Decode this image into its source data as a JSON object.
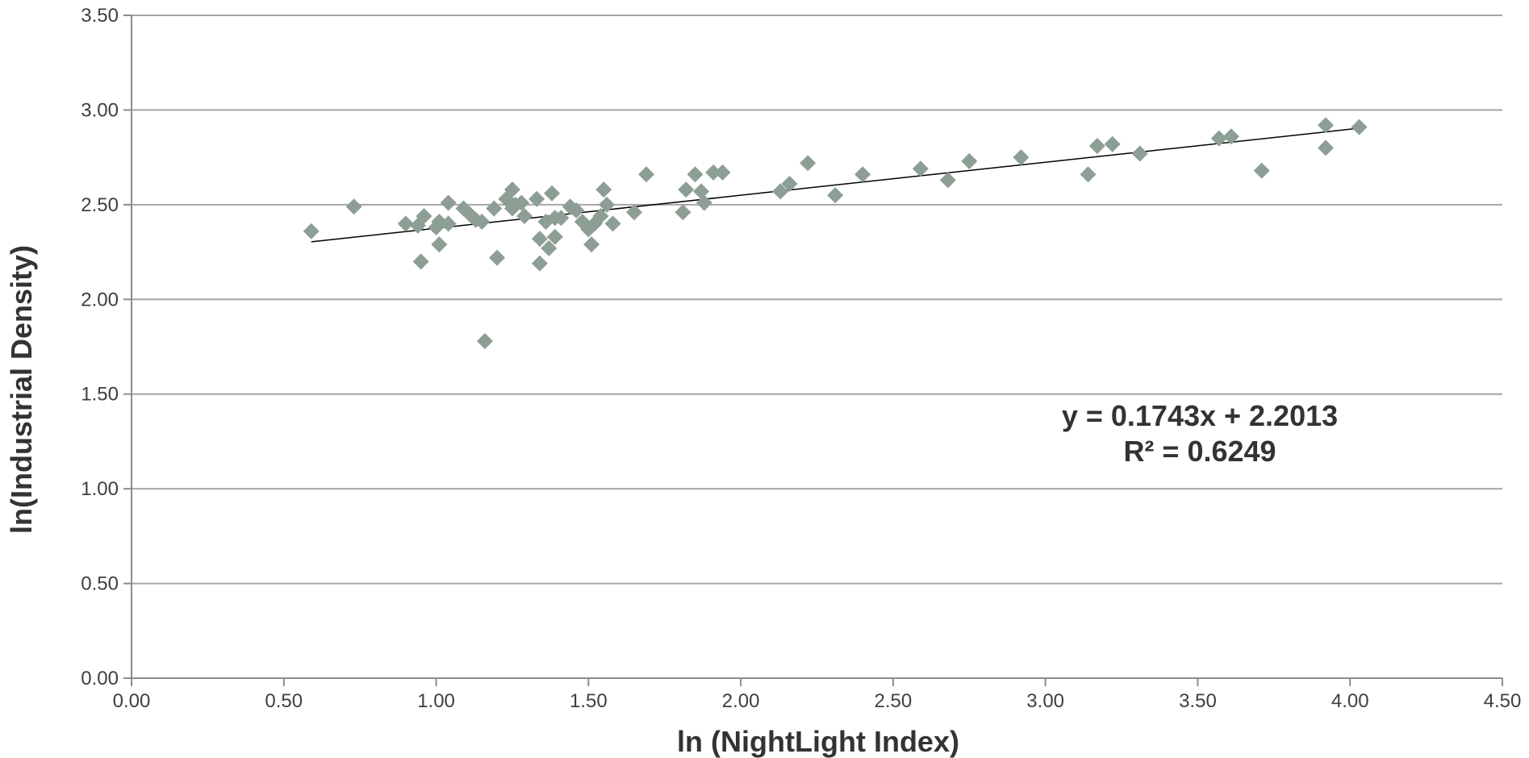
{
  "chart_data": {
    "type": "scatter",
    "title": "",
    "xlabel": "ln (NightLight Index)",
    "ylabel": "ln(Industrial Density)",
    "xlim": [
      0,
      4.5
    ],
    "ylim": [
      0,
      3.5
    ],
    "x_ticks": [
      "0.00",
      "0.50",
      "1.00",
      "1.50",
      "2.00",
      "2.50",
      "3.00",
      "3.50",
      "4.00",
      "4.50"
    ],
    "y_ticks": [
      "0.00",
      "0.50",
      "1.00",
      "1.50",
      "2.00",
      "2.50",
      "3.00",
      "3.50"
    ],
    "grid": "horizontal",
    "marker": "diamond",
    "marker_color": "#8d9e94",
    "trendline_color": "#000000",
    "grid_color": "#a6a6a6",
    "series": [
      {
        "points": [
          [
            0.59,
            2.36
          ],
          [
            0.73,
            2.49
          ],
          [
            0.9,
            2.4
          ],
          [
            0.94,
            2.39
          ],
          [
            0.95,
            2.2
          ],
          [
            0.96,
            2.44
          ],
          [
            1.0,
            2.38
          ],
          [
            1.01,
            2.41
          ],
          [
            1.01,
            2.29
          ],
          [
            1.04,
            2.4
          ],
          [
            1.04,
            2.51
          ],
          [
            1.09,
            2.48
          ],
          [
            1.11,
            2.45
          ],
          [
            1.13,
            2.42
          ],
          [
            1.15,
            2.41
          ],
          [
            1.16,
            1.78
          ],
          [
            1.19,
            2.48
          ],
          [
            1.2,
            2.22
          ],
          [
            1.23,
            2.53
          ],
          [
            1.25,
            2.58
          ],
          [
            1.25,
            2.48
          ],
          [
            1.26,
            2.5
          ],
          [
            1.28,
            2.51
          ],
          [
            1.29,
            2.44
          ],
          [
            1.33,
            2.53
          ],
          [
            1.34,
            2.19
          ],
          [
            1.34,
            2.32
          ],
          [
            1.36,
            2.41
          ],
          [
            1.37,
            2.27
          ],
          [
            1.38,
            2.56
          ],
          [
            1.39,
            2.43
          ],
          [
            1.39,
            2.33
          ],
          [
            1.41,
            2.43
          ],
          [
            1.44,
            2.49
          ],
          [
            1.46,
            2.47
          ],
          [
            1.48,
            2.41
          ],
          [
            1.5,
            2.37
          ],
          [
            1.51,
            2.29
          ],
          [
            1.52,
            2.4
          ],
          [
            1.54,
            2.44
          ],
          [
            1.55,
            2.58
          ],
          [
            1.56,
            2.5
          ],
          [
            1.58,
            2.4
          ],
          [
            1.65,
            2.46
          ],
          [
            1.69,
            2.66
          ],
          [
            1.81,
            2.46
          ],
          [
            1.82,
            2.58
          ],
          [
            1.85,
            2.66
          ],
          [
            1.87,
            2.57
          ],
          [
            1.88,
            2.51
          ],
          [
            1.91,
            2.67
          ],
          [
            1.94,
            2.67
          ],
          [
            2.13,
            2.57
          ],
          [
            2.16,
            2.61
          ],
          [
            2.22,
            2.72
          ],
          [
            2.31,
            2.55
          ],
          [
            2.4,
            2.66
          ],
          [
            2.59,
            2.69
          ],
          [
            2.68,
            2.63
          ],
          [
            2.75,
            2.73
          ],
          [
            2.92,
            2.75
          ],
          [
            3.14,
            2.66
          ],
          [
            3.17,
            2.81
          ],
          [
            3.22,
            2.82
          ],
          [
            3.31,
            2.77
          ],
          [
            3.57,
            2.85
          ],
          [
            3.61,
            2.86
          ],
          [
            3.71,
            2.68
          ],
          [
            3.92,
            2.92
          ],
          [
            3.92,
            2.8
          ],
          [
            4.03,
            2.91
          ]
        ]
      }
    ],
    "trendline": {
      "slope": 0.1743,
      "intercept": 2.2013,
      "x_start": 0.59,
      "x_end": 4.03
    },
    "annotation": {
      "equation": "y = 0.1743x + 2.2013",
      "r_squared": "R² = 0.6249"
    }
  }
}
